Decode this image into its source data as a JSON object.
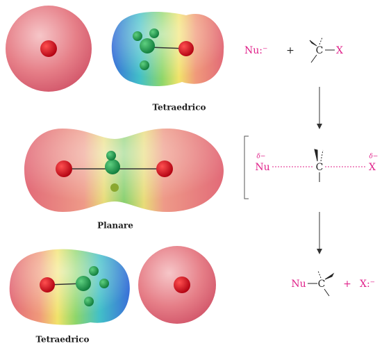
{
  "labels": {
    "top": "Tetraedrico",
    "middle": "Planare",
    "bottom": "Tetraedrico"
  },
  "reactants": {
    "nucleophile": "Nu:⁻",
    "plus": "+",
    "carbon": "C",
    "leaving_group": "X"
  },
  "transition_state": {
    "nu_charge": "δ−",
    "nucleophile": "Nu",
    "carbon": "C",
    "x_charge": "δ−",
    "leaving_group": "X"
  },
  "products": {
    "nucleophile": "Nu",
    "carbon": "C",
    "plus": "+",
    "leaving_group": "X:⁻"
  }
}
